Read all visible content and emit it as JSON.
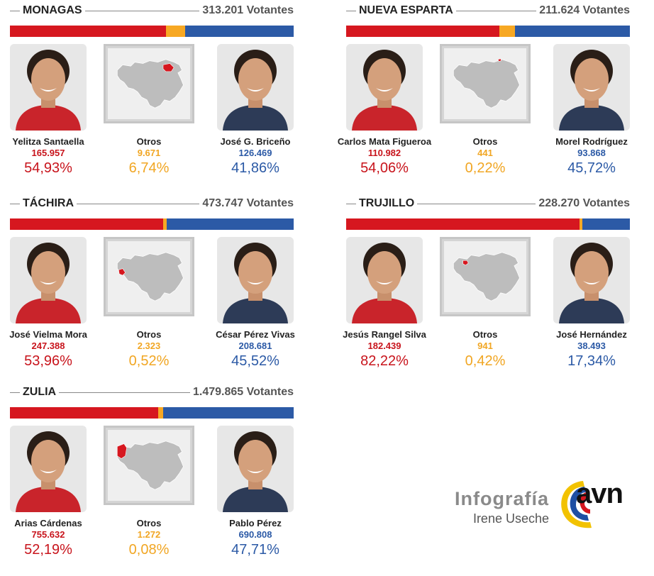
{
  "states": [
    {
      "name": "MONAGAS",
      "voters": "313.201 Votantes",
      "shares": [
        54.93,
        6.74,
        41.86
      ],
      "left": {
        "name": "Yelitza Santaella",
        "votes": "165.957",
        "pct": "54,93%"
      },
      "others": {
        "name": "Otros",
        "votes": "9.671",
        "pct": "6,74%"
      },
      "right": {
        "name": "José G. Briceño",
        "votes": "126.469",
        "pct": "41,86%"
      }
    },
    {
      "name": "NUEVA ESPARTA",
      "voters": "211.624 Votantes",
      "shares": [
        54.06,
        0.22,
        45.72
      ],
      "left": {
        "name": "Carlos Mata Figueroa",
        "votes": "110.982",
        "pct": "54,06%"
      },
      "others": {
        "name": "Otros",
        "votes": "441",
        "pct": "0,22%"
      },
      "right": {
        "name": "Morel Rodríguez",
        "votes": "93.868",
        "pct": "45,72%"
      }
    },
    {
      "name": "TÁCHIRA",
      "voters": "473.747 Votantes",
      "shares": [
        53.96,
        0.52,
        45.52
      ],
      "left": {
        "name": "José Vielma Mora",
        "votes": "247.388",
        "pct": "53,96%"
      },
      "others": {
        "name": "Otros",
        "votes": "2.323",
        "pct": "0,52%"
      },
      "right": {
        "name": "César Pérez Vivas",
        "votes": "208.681",
        "pct": "45,52%"
      }
    },
    {
      "name": "TRUJILLO",
      "voters": "228.270 Votantes",
      "shares": [
        82.22,
        0.42,
        17.34
      ],
      "left": {
        "name": "Jesús Rangel Silva",
        "votes": "182.439",
        "pct": "82,22%"
      },
      "others": {
        "name": "Otros",
        "votes": "941",
        "pct": "0,42%"
      },
      "right": {
        "name": "José Hernández",
        "votes": "38.493",
        "pct": "17,34%"
      }
    },
    {
      "name": "ZULIA",
      "voters": "1.479.865 Votantes",
      "shares": [
        52.19,
        0.08,
        47.71
      ],
      "left": {
        "name": "Arias Cárdenas",
        "votes": "755.632",
        "pct": "52,19%"
      },
      "others": {
        "name": "Otros",
        "votes": "1.272",
        "pct": "0,08%"
      },
      "right": {
        "name": "Pablo Pérez",
        "votes": "690.808",
        "pct": "47,71%"
      }
    }
  ],
  "credit": {
    "line1": "Infografía",
    "line2": "Irene Useche"
  },
  "logo": {
    "text": "avn"
  },
  "colors": {
    "red": "#d6171f",
    "orange": "#f7a823",
    "blue": "#2c5aa6"
  }
}
